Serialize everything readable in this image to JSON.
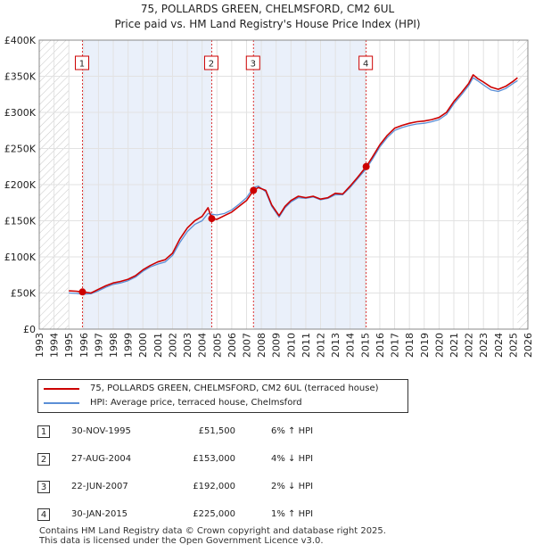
{
  "chart_data": {
    "type": "line",
    "title": "75, POLLARDS GREEN, CHELMSFORD, CM2 6UL",
    "subtitle": "Price paid vs. HM Land Registry's House Price Index (HPI)",
    "xlim": [
      1993,
      2026
    ],
    "ylim": [
      0,
      400000
    ],
    "x_ticks": [
      1993,
      1994,
      1995,
      1996,
      1997,
      1998,
      1999,
      2000,
      2001,
      2002,
      2003,
      2004,
      2005,
      2006,
      2007,
      2008,
      2009,
      2010,
      2011,
      2012,
      2013,
      2014,
      2015,
      2016,
      2017,
      2018,
      2019,
      2020,
      2021,
      2022,
      2023,
      2024,
      2025,
      2026
    ],
    "y_ticks": [
      {
        "value": 0,
        "label": "£0"
      },
      {
        "value": 50000,
        "label": "£50K"
      },
      {
        "value": 100000,
        "label": "£100K"
      },
      {
        "value": 150000,
        "label": "£150K"
      },
      {
        "value": 200000,
        "label": "£200K"
      },
      {
        "value": 250000,
        "label": "£250K"
      },
      {
        "value": 300000,
        "label": "£300K"
      },
      {
        "value": 350000,
        "label": "£350K"
      },
      {
        "value": 400000,
        "label": "£400K"
      }
    ],
    "grid": true,
    "data_start": 1995.0,
    "data_end": 2025.3,
    "series": [
      {
        "name": "75, POLLARDS GREEN, CHELMSFORD, CM2 6UL (terraced house)",
        "color": "#cc0000",
        "points": [
          [
            1995.0,
            53000
          ],
          [
            1995.5,
            52500
          ],
          [
            1995.9,
            51500
          ],
          [
            1996.5,
            50000
          ],
          [
            1997.0,
            55000
          ],
          [
            1997.5,
            60000
          ],
          [
            1998.0,
            64000
          ],
          [
            1998.5,
            66000
          ],
          [
            1999.0,
            69000
          ],
          [
            1999.5,
            74000
          ],
          [
            2000.0,
            82000
          ],
          [
            2000.5,
            88000
          ],
          [
            2001.0,
            93000
          ],
          [
            2001.5,
            96000
          ],
          [
            2002.0,
            105000
          ],
          [
            2002.5,
            125000
          ],
          [
            2003.0,
            140000
          ],
          [
            2003.5,
            150000
          ],
          [
            2004.0,
            156000
          ],
          [
            2004.4,
            168000
          ],
          [
            2004.65,
            153000
          ],
          [
            2005.0,
            152000
          ],
          [
            2005.5,
            157000
          ],
          [
            2006.0,
            162000
          ],
          [
            2006.5,
            170000
          ],
          [
            2007.0,
            178000
          ],
          [
            2007.47,
            192000
          ],
          [
            2007.8,
            196000
          ],
          [
            2008.3,
            192000
          ],
          [
            2008.7,
            172000
          ],
          [
            2009.2,
            157000
          ],
          [
            2009.6,
            170000
          ],
          [
            2010.0,
            178000
          ],
          [
            2010.5,
            184000
          ],
          [
            2011.0,
            182000
          ],
          [
            2011.5,
            184000
          ],
          [
            2012.0,
            180000
          ],
          [
            2012.5,
            182000
          ],
          [
            2013.0,
            188000
          ],
          [
            2013.5,
            187000
          ],
          [
            2014.0,
            198000
          ],
          [
            2014.5,
            210000
          ],
          [
            2015.08,
            225000
          ],
          [
            2015.5,
            238000
          ],
          [
            2016.0,
            255000
          ],
          [
            2016.5,
            268000
          ],
          [
            2017.0,
            278000
          ],
          [
            2017.5,
            282000
          ],
          [
            2018.0,
            285000
          ],
          [
            2018.5,
            287000
          ],
          [
            2019.0,
            288000
          ],
          [
            2019.5,
            290000
          ],
          [
            2020.0,
            293000
          ],
          [
            2020.5,
            300000
          ],
          [
            2021.0,
            315000
          ],
          [
            2021.5,
            327000
          ],
          [
            2022.0,
            340000
          ],
          [
            2022.3,
            352000
          ],
          [
            2022.6,
            347000
          ],
          [
            2023.0,
            342000
          ],
          [
            2023.5,
            335000
          ],
          [
            2024.0,
            332000
          ],
          [
            2024.5,
            336000
          ],
          [
            2025.0,
            343000
          ],
          [
            2025.3,
            348000
          ]
        ]
      },
      {
        "name": "HPI: Average price, terraced house, Chelmsford",
        "color": "#5b8fd6",
        "points": [
          [
            1995.0,
            50000
          ],
          [
            1995.5,
            49500
          ],
          [
            1995.9,
            48500
          ],
          [
            1996.5,
            49000
          ],
          [
            1997.0,
            53000
          ],
          [
            1997.5,
            58000
          ],
          [
            1998.0,
            62000
          ],
          [
            1998.5,
            64000
          ],
          [
            1999.0,
            67000
          ],
          [
            1999.5,
            72000
          ],
          [
            2000.0,
            80000
          ],
          [
            2000.5,
            86000
          ],
          [
            2001.0,
            90000
          ],
          [
            2001.5,
            93000
          ],
          [
            2002.0,
            102000
          ],
          [
            2002.5,
            120000
          ],
          [
            2003.0,
            135000
          ],
          [
            2003.5,
            145000
          ],
          [
            2004.0,
            150000
          ],
          [
            2004.4,
            160000
          ],
          [
            2004.65,
            159000
          ],
          [
            2005.0,
            158000
          ],
          [
            2005.5,
            160000
          ],
          [
            2006.0,
            165000
          ],
          [
            2006.5,
            173000
          ],
          [
            2007.0,
            182000
          ],
          [
            2007.47,
            196000
          ],
          [
            2007.8,
            198000
          ],
          [
            2008.3,
            190000
          ],
          [
            2008.7,
            170000
          ],
          [
            2009.2,
            155000
          ],
          [
            2009.6,
            168000
          ],
          [
            2010.0,
            176000
          ],
          [
            2010.5,
            182000
          ],
          [
            2011.0,
            181000
          ],
          [
            2011.5,
            183000
          ],
          [
            2012.0,
            179000
          ],
          [
            2012.5,
            181000
          ],
          [
            2013.0,
            186000
          ],
          [
            2013.5,
            186000
          ],
          [
            2014.0,
            196000
          ],
          [
            2014.5,
            208000
          ],
          [
            2015.08,
            222000
          ],
          [
            2015.5,
            235000
          ],
          [
            2016.0,
            252000
          ],
          [
            2016.5,
            265000
          ],
          [
            2017.0,
            275000
          ],
          [
            2017.5,
            279000
          ],
          [
            2018.0,
            282000
          ],
          [
            2018.5,
            284000
          ],
          [
            2019.0,
            285000
          ],
          [
            2019.5,
            287000
          ],
          [
            2020.0,
            290000
          ],
          [
            2020.5,
            297000
          ],
          [
            2021.0,
            312000
          ],
          [
            2021.5,
            324000
          ],
          [
            2022.0,
            337000
          ],
          [
            2022.3,
            348000
          ],
          [
            2022.6,
            344000
          ],
          [
            2023.0,
            338000
          ],
          [
            2023.5,
            331000
          ],
          [
            2024.0,
            329000
          ],
          [
            2024.5,
            333000
          ],
          [
            2025.0,
            340000
          ],
          [
            2025.3,
            344000
          ]
        ]
      }
    ],
    "sales": [
      {
        "label": "1",
        "x": 1995.92,
        "price": 51500
      },
      {
        "label": "2",
        "x": 2004.65,
        "price": 153000
      },
      {
        "label": "3",
        "x": 2007.47,
        "price": 192000
      },
      {
        "label": "4",
        "x": 2015.08,
        "price": 225000
      }
    ]
  },
  "legend": {
    "property_label": "75, POLLARDS GREEN, CHELMSFORD, CM2 6UL (terraced house)",
    "hpi_label": "HPI: Average price, terraced house, Chelmsford"
  },
  "transactions": [
    {
      "num": "1",
      "date": "30-NOV-1995",
      "price": "£51,500",
      "hpi": "6% ↑ HPI"
    },
    {
      "num": "2",
      "date": "27-AUG-2004",
      "price": "£153,000",
      "hpi": "4% ↓ HPI"
    },
    {
      "num": "3",
      "date": "22-JUN-2007",
      "price": "£192,000",
      "hpi": "2% ↓ HPI"
    },
    {
      "num": "4",
      "date": "30-JAN-2015",
      "price": "£225,000",
      "hpi": "1% ↑ HPI"
    }
  ],
  "footer": {
    "line1": "Contains HM Land Registry data © Crown copyright and database right 2025.",
    "line2": "This data is licensed under the Open Government Licence v3.0."
  }
}
